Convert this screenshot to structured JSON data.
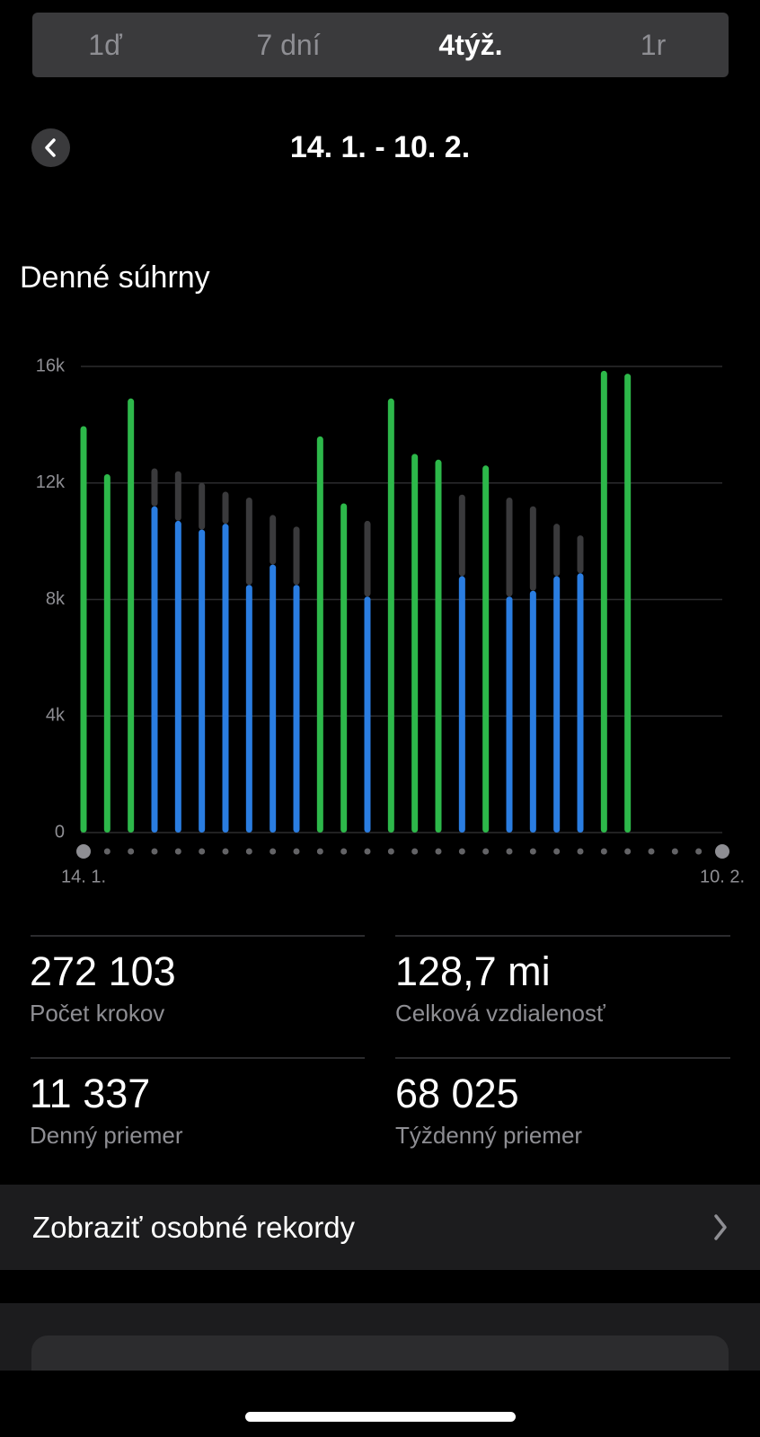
{
  "tabs": [
    "1ď",
    "7 dní",
    "4týž.",
    "1r"
  ],
  "header": {
    "date_range": "14. 1. - 10. 2."
  },
  "chart_data": {
    "type": "bar",
    "title": "Denné súhrny",
    "categories": [
      "14. 1.",
      null,
      null,
      null,
      null,
      null,
      null,
      null,
      null,
      null,
      null,
      null,
      null,
      null,
      null,
      null,
      null,
      null,
      null,
      null,
      null,
      null,
      null,
      null,
      null,
      null,
      null,
      "10. 2."
    ],
    "series": [
      {
        "values": [
          13950,
          12300,
          14900,
          11200,
          10700,
          10400,
          10600,
          8500,
          9200,
          8500,
          13600,
          11300,
          8100,
          14900,
          13000,
          12800,
          8800,
          12600,
          8100,
          8300,
          8800,
          8900,
          15850,
          15750,
          null,
          null,
          null,
          null
        ],
        "colors": [
          "#2db84a",
          "#2db84a",
          "#2db84a",
          "#2a7de1",
          "#2a7de1",
          "#2a7de1",
          "#2a7de1",
          "#2a7de1",
          "#2a7de1",
          "#2a7de1",
          "#2db84a",
          "#2db84a",
          "#2a7de1",
          "#2db84a",
          "#2db84a",
          "#2db84a",
          "#2a7de1",
          "#2db84a",
          "#2a7de1",
          "#2a7de1",
          "#2a7de1",
          "#2a7de1",
          "#2db84a",
          "#2db84a",
          null,
          null,
          null,
          null
        ]
      },
      {
        "color": "#3a3a3c",
        "values": [
          null,
          null,
          null,
          1300,
          1700,
          1600,
          1100,
          3000,
          1700,
          2000,
          null,
          null,
          2600,
          null,
          null,
          null,
          2800,
          null,
          3400,
          2900,
          1800,
          1300,
          null,
          null,
          null,
          null,
          null,
          null
        ]
      }
    ],
    "ylim": [
      0,
      16000
    ],
    "yticks": [
      0,
      {
        "value": 4000,
        "label": "4k"
      },
      {
        "value": 8000,
        "label": "8k"
      },
      {
        "value": 12000,
        "label": "12k"
      },
      {
        "value": 16000,
        "label": "16k"
      }
    ],
    "grid": true
  },
  "stats": [
    {
      "value": "272 103",
      "label": "Počet krokov"
    },
    {
      "value": "128,7 mi",
      "label": "Celková vzdialenosť"
    },
    {
      "value": "11 337",
      "label": "Denný priemer"
    },
    {
      "value": "68 025",
      "label": "Týždenný priemer"
    }
  ],
  "records_button": "Zobraziť osobné rekordy"
}
